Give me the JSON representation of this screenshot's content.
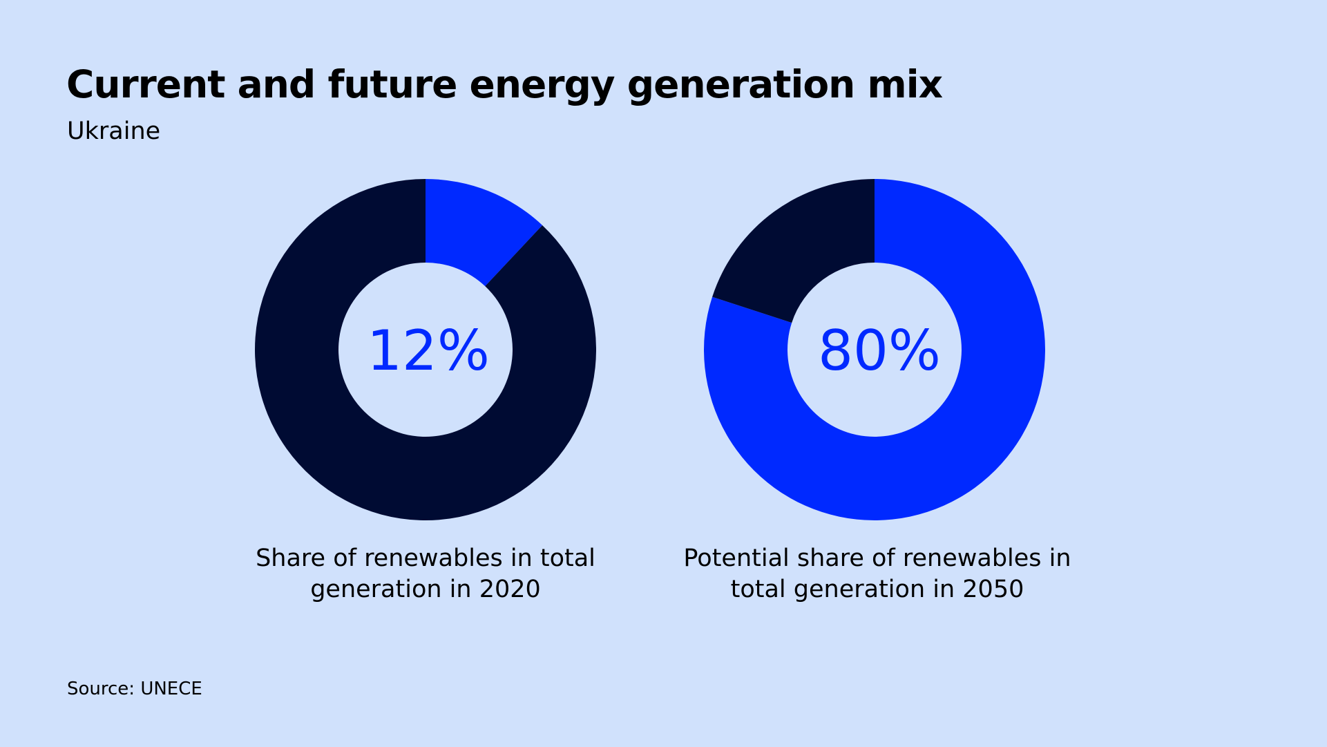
{
  "title": "Current and future energy generation mix",
  "subtitle": "Ukraine",
  "source": "Source: UNECE",
  "colors": {
    "background": "#d0e1fc",
    "renewables": "#0029ff",
    "other": "#000b33"
  },
  "chart_data": [
    {
      "type": "pie",
      "variant": "donut",
      "center_label": "12%",
      "caption": "Share of renewables in total generation in 2020",
      "slices": [
        {
          "category": "renewables",
          "value": 12
        },
        {
          "category": "other",
          "value": 88
        }
      ]
    },
    {
      "type": "pie",
      "variant": "donut",
      "center_label": "80%",
      "caption": "Potential share of renewables in total generation in 2050",
      "slices": [
        {
          "category": "renewables",
          "value": 80
        },
        {
          "category": "other",
          "value": 20
        }
      ]
    }
  ]
}
